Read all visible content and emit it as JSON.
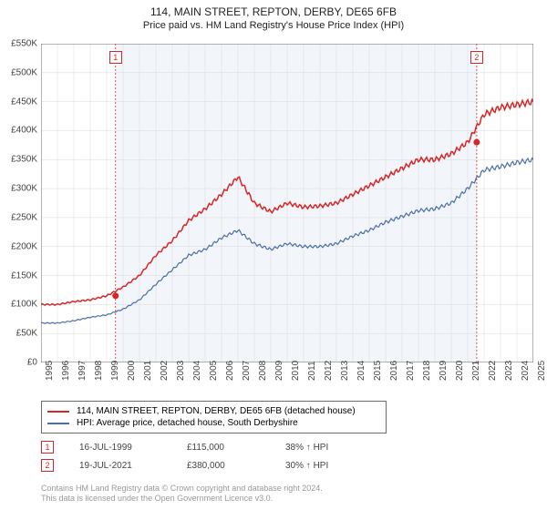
{
  "title": "114, MAIN STREET, REPTON, DERBY, DE65 6FB",
  "subtitle": "Price paid vs. HM Land Registry's House Price Index (HPI)",
  "chart": {
    "type": "line",
    "background_color": "#ffffff",
    "shaded_background_color": "#f2f5fa",
    "grid_color": "#d9d9d9",
    "border_color": "#6a6a6a",
    "ylim": [
      0,
      550000
    ],
    "ytick_step": 50000,
    "y_labels": [
      "£0",
      "£50K",
      "£100K",
      "£150K",
      "£200K",
      "£250K",
      "£300K",
      "£350K",
      "£400K",
      "£450K",
      "£500K",
      "£550K"
    ],
    "x_years": [
      1995,
      1996,
      1997,
      1998,
      1999,
      2000,
      2001,
      2002,
      2003,
      2004,
      2005,
      2006,
      2007,
      2008,
      2009,
      2010,
      2011,
      2012,
      2013,
      2014,
      2015,
      2016,
      2017,
      2018,
      2019,
      2020,
      2021,
      2022,
      2023,
      2024,
      2025
    ],
    "series": [
      {
        "name": "property_price",
        "label": "114, MAIN STREET, REPTON, DERBY, DE65 6FB (detached house)",
        "color": "#d62728",
        "line_width": 1.5,
        "values_yearly": [
          100000,
          100000,
          105000,
          108000,
          115000,
          130000,
          150000,
          185000,
          210000,
          245000,
          265000,
          290000,
          320000,
          275000,
          260000,
          275000,
          268000,
          270000,
          275000,
          290000,
          305000,
          320000,
          335000,
          350000,
          350000,
          360000,
          380000,
          428000,
          440000,
          445000,
          450000
        ]
      },
      {
        "name": "hpi",
        "label": "HPI: Average price, detached house, South Derbyshire",
        "color": "#4a6fa5",
        "line_width": 1.2,
        "values_yearly": [
          68000,
          68000,
          72000,
          78000,
          82000,
          92000,
          108000,
          135000,
          160000,
          185000,
          195000,
          215000,
          228000,
          205000,
          195000,
          205000,
          200000,
          200000,
          205000,
          218000,
          228000,
          242000,
          252000,
          262000,
          265000,
          275000,
          300000,
          332000,
          338000,
          345000,
          350000
        ]
      }
    ],
    "sale_markers": [
      {
        "id": "1",
        "year": 1999.54,
        "price": 115000
      },
      {
        "id": "2",
        "year": 2021.55,
        "price": 380000
      }
    ],
    "marker_line_color": "#d62728",
    "marker_dot_color": "#d62728"
  },
  "legend": {
    "rows": [
      {
        "color": "#d62728",
        "label": "114, MAIN STREET, REPTON, DERBY, DE65 6FB (detached house)"
      },
      {
        "color": "#4a6fa5",
        "label": "HPI: Average price, detached house, South Derbyshire"
      }
    ]
  },
  "sales_table": [
    {
      "marker": "1",
      "date": "16-JUL-1999",
      "price": "£115,000",
      "vs_hpi": "38% ↑ HPI"
    },
    {
      "marker": "2",
      "date": "19-JUL-2021",
      "price": "£380,000",
      "vs_hpi": "30% ↑ HPI"
    }
  ],
  "footer": {
    "line1": "Contains HM Land Registry data © Crown copyright and database right 2024.",
    "line2": "This data is licensed under the Open Government Licence v3.0."
  }
}
